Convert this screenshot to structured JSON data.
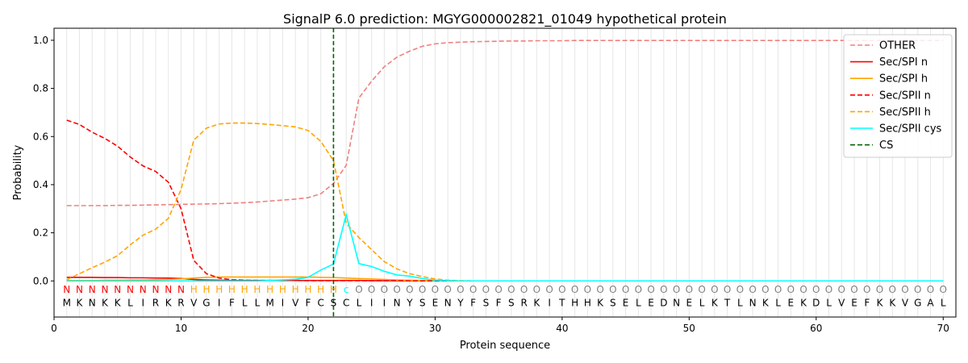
{
  "chart_data": {
    "type": "line",
    "title": "SignalP 6.0 prediction: MGYG000002821_01049 hypothetical protein",
    "xlabel": "Protein sequence",
    "ylabel": "Probability",
    "xlim": [
      0,
      71
    ],
    "ylim": [
      -0.15,
      1.05
    ],
    "x_ticks": [
      0,
      10,
      20,
      30,
      40,
      50,
      60,
      70
    ],
    "y_ticks": [
      0.0,
      0.2,
      0.4,
      0.6,
      0.8,
      1.0
    ],
    "x_tick_labels": [
      "0",
      "10",
      "20",
      "30",
      "40",
      "50",
      "60",
      "70"
    ],
    "y_tick_labels": [
      "0.0",
      "0.2",
      "0.4",
      "0.6",
      "0.8",
      "1.0"
    ],
    "grid": "vertical lines at each residue",
    "legend_position": "top-right",
    "cleavage_site": 22,
    "sequence": [
      "M",
      "K",
      "N",
      "K",
      "K",
      "L",
      "I",
      "R",
      "K",
      "R",
      "V",
      "G",
      "I",
      "F",
      "L",
      "L",
      "M",
      "I",
      "V",
      "F",
      "C",
      "S",
      "C",
      "L",
      "I",
      "I",
      "N",
      "Y",
      "S",
      "E",
      "N",
      "Y",
      "F",
      "S",
      "F",
      "S",
      "R",
      "K",
      "I",
      "T",
      "H",
      "H",
      "K",
      "S",
      "E",
      "L",
      "E",
      "D",
      "N",
      "E",
      "L",
      "K",
      "T",
      "L",
      "N",
      "K",
      "L",
      "E",
      "K",
      "D",
      "L",
      "V",
      "E",
      "F",
      "K",
      "K",
      "V",
      "G",
      "A",
      "L"
    ],
    "labels": [
      "N",
      "N",
      "N",
      "N",
      "N",
      "N",
      "N",
      "N",
      "N",
      "N",
      "H",
      "H",
      "H",
      "H",
      "H",
      "H",
      "H",
      "H",
      "H",
      "H",
      "H",
      "H",
      "C",
      "O",
      "O",
      "O",
      "O",
      "O",
      "O",
      "O",
      "O",
      "O",
      "O",
      "O",
      "O",
      "O",
      "O",
      "O",
      "O",
      "O",
      "O",
      "O",
      "O",
      "O",
      "O",
      "O",
      "O",
      "O",
      "O",
      "O",
      "O",
      "O",
      "O",
      "O",
      "O",
      "O",
      "O",
      "O",
      "O",
      "O",
      "O",
      "O",
      "O",
      "O",
      "O",
      "O",
      "O",
      "O",
      "O",
      "O"
    ],
    "label_colors": {
      "N": "#ff0000",
      "H": "#ffa500",
      "C": "#00ffff",
      "O": "#808080"
    },
    "series": [
      {
        "name": "OTHER",
        "color": "#f08080",
        "dash": "dashed",
        "values": [
          0.313,
          0.313,
          0.313,
          0.313,
          0.314,
          0.314,
          0.315,
          0.316,
          0.317,
          0.318,
          0.319,
          0.32,
          0.321,
          0.323,
          0.325,
          0.328,
          0.332,
          0.336,
          0.34,
          0.346,
          0.362,
          0.405,
          0.48,
          0.76,
          0.83,
          0.89,
          0.93,
          0.955,
          0.975,
          0.985,
          0.99,
          0.992,
          0.994,
          0.995,
          0.996,
          0.997,
          0.997,
          0.998,
          0.998,
          0.998,
          0.999,
          0.999,
          0.999,
          0.999,
          0.999,
          0.999,
          0.999,
          0.999,
          0.999,
          0.999,
          0.999,
          0.999,
          0.999,
          0.999,
          0.999,
          0.999,
          0.999,
          0.999,
          0.999,
          0.999,
          0.999,
          0.999,
          0.999,
          0.999,
          0.999,
          0.999,
          0.999,
          0.999,
          0.999,
          0.999
        ]
      },
      {
        "name": "Sec/SPI n",
        "color": "#ff0000",
        "dash": "solid",
        "values": [
          0.015,
          0.015,
          0.015,
          0.014,
          0.014,
          0.013,
          0.013,
          0.012,
          0.012,
          0.01,
          0.006,
          0.004,
          0.003,
          0.002,
          0.002,
          0.002,
          0.002,
          0.002,
          0.002,
          0.002,
          0.002,
          0.002,
          0.002,
          0.002,
          0.001,
          0.001,
          0.001,
          0.001,
          0.001,
          0.001,
          0,
          0,
          0,
          0,
          0,
          0,
          0,
          0,
          0,
          0,
          0,
          0,
          0,
          0,
          0,
          0,
          0,
          0,
          0,
          0,
          0,
          0,
          0,
          0,
          0,
          0,
          0,
          0,
          0,
          0,
          0,
          0,
          0,
          0,
          0,
          0,
          0,
          0,
          0,
          0
        ]
      },
      {
        "name": "Sec/SPI h",
        "color": "#ffa500",
        "dash": "solid",
        "values": [
          0.002,
          0.002,
          0.002,
          0.003,
          0.003,
          0.004,
          0.004,
          0.005,
          0.006,
          0.008,
          0.012,
          0.015,
          0.016,
          0.016,
          0.016,
          0.016,
          0.016,
          0.016,
          0.016,
          0.016,
          0.015,
          0.014,
          0.012,
          0.01,
          0.008,
          0.006,
          0.004,
          0.003,
          0.002,
          0.001,
          0,
          0,
          0,
          0,
          0,
          0,
          0,
          0,
          0,
          0,
          0,
          0,
          0,
          0,
          0,
          0,
          0,
          0,
          0,
          0,
          0,
          0,
          0,
          0,
          0,
          0,
          0,
          0,
          0,
          0,
          0,
          0,
          0,
          0,
          0,
          0,
          0,
          0,
          0,
          0
        ]
      },
      {
        "name": "Sec/SPII n",
        "color": "#ff0000",
        "dash": "dashed",
        "values": [
          0.668,
          0.65,
          0.618,
          0.592,
          0.56,
          0.515,
          0.478,
          0.455,
          0.41,
          0.3,
          0.085,
          0.03,
          0.012,
          0.005,
          0.003,
          0.002,
          0.002,
          0.002,
          0.002,
          0.001,
          0.001,
          0.001,
          0.001,
          0.001,
          0.001,
          0.001,
          0.001,
          0,
          0,
          0,
          0,
          0,
          0,
          0,
          0,
          0,
          0,
          0,
          0,
          0,
          0,
          0,
          0,
          0,
          0,
          0,
          0,
          0,
          0,
          0,
          0,
          0,
          0,
          0,
          0,
          0,
          0,
          0,
          0,
          0,
          0,
          0,
          0,
          0,
          0,
          0,
          0,
          0,
          0,
          0
        ]
      },
      {
        "name": "Sec/SPII h",
        "color": "#ffa500",
        "dash": "dashed",
        "values": [
          0.005,
          0.03,
          0.055,
          0.078,
          0.105,
          0.15,
          0.19,
          0.215,
          0.26,
          0.38,
          0.585,
          0.635,
          0.652,
          0.656,
          0.656,
          0.654,
          0.65,
          0.645,
          0.64,
          0.625,
          0.58,
          0.5,
          0.24,
          0.18,
          0.13,
          0.08,
          0.05,
          0.03,
          0.018,
          0.008,
          0.003,
          0.001,
          0,
          0,
          0,
          0,
          0,
          0,
          0,
          0,
          0,
          0,
          0,
          0,
          0,
          0,
          0,
          0,
          0,
          0,
          0,
          0,
          0,
          0,
          0,
          0,
          0,
          0,
          0,
          0,
          0,
          0,
          0,
          0,
          0,
          0,
          0,
          0,
          0,
          0
        ]
      },
      {
        "name": "Sec/SPII cys",
        "color": "#00ffff",
        "dash": "solid",
        "values": [
          0,
          0,
          0,
          0,
          0,
          0,
          0,
          0,
          0,
          0,
          0,
          0,
          0,
          0,
          0,
          0,
          0.002,
          0.004,
          0.007,
          0.015,
          0.045,
          0.07,
          0.275,
          0.072,
          0.06,
          0.04,
          0.025,
          0.02,
          0.01,
          0.003,
          0.001,
          0,
          0,
          0,
          0,
          0,
          0,
          0,
          0,
          0,
          0,
          0,
          0,
          0,
          0,
          0,
          0,
          0,
          0,
          0,
          0,
          0,
          0,
          0,
          0,
          0,
          0,
          0,
          0,
          0,
          0,
          0,
          0,
          0,
          0,
          0,
          0,
          0,
          0,
          0
        ]
      }
    ],
    "legend": [
      {
        "name": "OTHER",
        "color": "#f08080",
        "dash": "dashed"
      },
      {
        "name": "Sec/SPI n",
        "color": "#ff0000",
        "dash": "solid"
      },
      {
        "name": "Sec/SPI h",
        "color": "#ffa500",
        "dash": "solid"
      },
      {
        "name": "Sec/SPII n",
        "color": "#ff0000",
        "dash": "dashed"
      },
      {
        "name": "Sec/SPII h",
        "color": "#ffa500",
        "dash": "dashed"
      },
      {
        "name": "Sec/SPII cys",
        "color": "#00ffff",
        "dash": "solid"
      },
      {
        "name": "CS",
        "color": "#006400",
        "dash": "dashed"
      }
    ]
  }
}
